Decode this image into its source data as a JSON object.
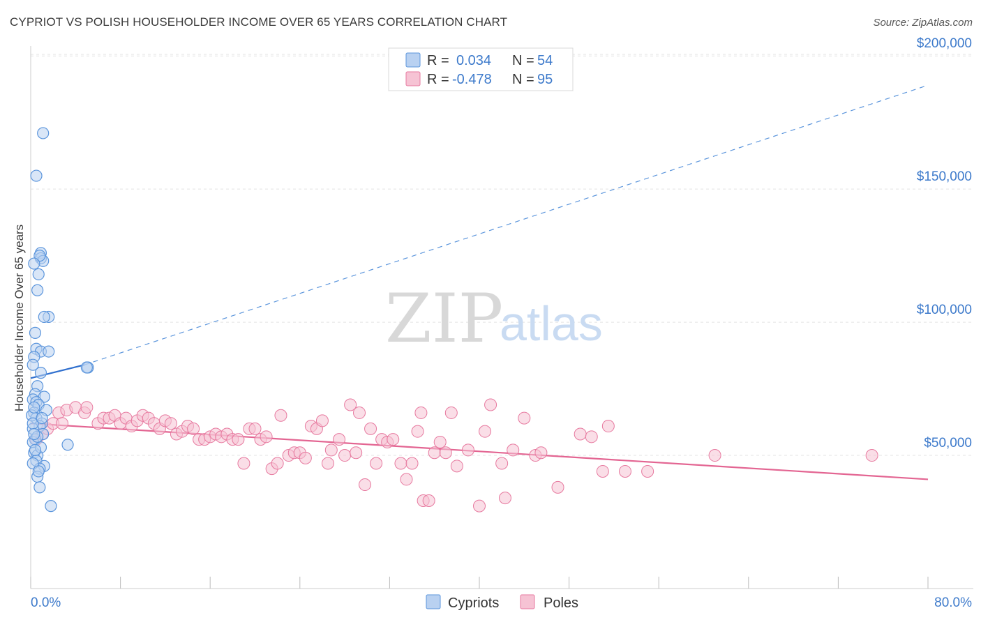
{
  "title": "CYPRIOT VS POLISH HOUSEHOLDER INCOME OVER 65 YEARS CORRELATION CHART",
  "source": "Source: ZipAtlas.com",
  "watermark": {
    "zip": "ZIP",
    "atlas": "atlas"
  },
  "colors": {
    "cypriot": "#5b95dc",
    "cypriot_fill": "#b9d1f1",
    "cypriot_line": "#2f6fce",
    "poles": "#e7799f",
    "poles_fill": "#f6c3d4",
    "poles_line": "#e36592",
    "axis_text": "#3d7acb",
    "grid": "#e3e3e3"
  },
  "legend": {
    "rows": [
      {
        "r_label": "R =",
        "r_value": "0.034",
        "n_label": "N =",
        "n_value": "54"
      },
      {
        "r_label": "R =",
        "r_value": "-0.478",
        "n_label": "N =",
        "n_value": "95"
      }
    ]
  },
  "chart_data": {
    "type": "scatter",
    "xlabel": "",
    "ylabel": "Householder Income Over 65 years",
    "xlim": [
      0,
      80
    ],
    "ylim": [
      0,
      210000
    ],
    "x_tick_labels": [
      "0.0%",
      "80.0%"
    ],
    "y_ticks": [
      50000,
      100000,
      150000,
      200000
    ],
    "y_tick_labels": [
      "$50,000",
      "$100,000",
      "$150,000",
      "$200,000"
    ],
    "grid": "horizontal dashed",
    "legend_position": "top-center",
    "bottom_legend": [
      "Cypriots",
      "Poles"
    ],
    "series": [
      {
        "name": "Cypriots",
        "r": 0.034,
        "n": 54,
        "trend": {
          "x": [
            0,
            4.8
          ],
          "y": [
            79000,
            84000
          ],
          "extension": {
            "x": [
              4.8,
              80
            ],
            "y": [
              84000,
              189000
            ]
          }
        },
        "points": [
          [
            1.1,
            171000
          ],
          [
            0.5,
            155000
          ],
          [
            0.9,
            126000
          ],
          [
            0.9,
            124000
          ],
          [
            1.1,
            123000
          ],
          [
            0.8,
            125000
          ],
          [
            0.3,
            122000
          ],
          [
            0.7,
            118000
          ],
          [
            0.6,
            112000
          ],
          [
            1.6,
            102000
          ],
          [
            1.2,
            102000
          ],
          [
            0.4,
            96000
          ],
          [
            0.5,
            90000
          ],
          [
            0.9,
            89000
          ],
          [
            1.6,
            89000
          ],
          [
            0.3,
            87000
          ],
          [
            0.2,
            84000
          ],
          [
            0.9,
            81000
          ],
          [
            0.6,
            76000
          ],
          [
            0.4,
            73000
          ],
          [
            1.2,
            72000
          ],
          [
            0.2,
            71000
          ],
          [
            0.5,
            70000
          ],
          [
            0.7,
            69000
          ],
          [
            0.3,
            66000
          ],
          [
            0.5,
            64000
          ],
          [
            1.0,
            62000
          ],
          [
            0.8,
            61000
          ],
          [
            0.2,
            60000
          ],
          [
            1.1,
            58000
          ],
          [
            0.4,
            56000
          ],
          [
            0.2,
            55000
          ],
          [
            3.3,
            54000
          ],
          [
            0.3,
            51000
          ],
          [
            0.6,
            50000
          ],
          [
            0.5,
            48000
          ],
          [
            1.2,
            46000
          ],
          [
            0.8,
            45000
          ],
          [
            0.6,
            42000
          ],
          [
            0.8,
            38000
          ],
          [
            1.8,
            31000
          ],
          [
            5.1,
            83000
          ],
          [
            5.0,
            83000
          ],
          [
            0.1,
            65000
          ],
          [
            0.3,
            68000
          ],
          [
            0.6,
            57000
          ],
          [
            0.9,
            53000
          ],
          [
            0.4,
            52000
          ],
          [
            0.2,
            47000
          ],
          [
            0.7,
            44000
          ],
          [
            1.4,
            67000
          ],
          [
            0.2,
            62000
          ],
          [
            0.3,
            58000
          ],
          [
            1.0,
            64000
          ]
        ]
      },
      {
        "name": "Poles",
        "r": -0.478,
        "n": 95,
        "trend": {
          "x": [
            0,
            80
          ],
          "y": [
            62000,
            41000
          ]
        },
        "points": [
          [
            0.5,
            56000
          ],
          [
            1.0,
            58000
          ],
          [
            1.5,
            60000
          ],
          [
            2.0,
            62000
          ],
          [
            2.5,
            66000
          ],
          [
            3.2,
            67000
          ],
          [
            4.0,
            68000
          ],
          [
            4.8,
            66000
          ],
          [
            5.0,
            68000
          ],
          [
            6.0,
            62000
          ],
          [
            6.5,
            64000
          ],
          [
            7.0,
            64000
          ],
          [
            7.5,
            65000
          ],
          [
            8.0,
            62000
          ],
          [
            8.5,
            64000
          ],
          [
            9.0,
            61000
          ],
          [
            9.5,
            63000
          ],
          [
            10.0,
            65000
          ],
          [
            10.5,
            64000
          ],
          [
            11.0,
            62000
          ],
          [
            11.5,
            60000
          ],
          [
            12.0,
            63000
          ],
          [
            12.5,
            62000
          ],
          [
            13.0,
            58000
          ],
          [
            13.5,
            59000
          ],
          [
            14.0,
            61000
          ],
          [
            14.5,
            60000
          ],
          [
            15.0,
            56000
          ],
          [
            15.5,
            56000
          ],
          [
            16.0,
            57000
          ],
          [
            16.5,
            58000
          ],
          [
            17.0,
            57000
          ],
          [
            17.5,
            58000
          ],
          [
            18.0,
            56000
          ],
          [
            18.5,
            56000
          ],
          [
            19.0,
            47000
          ],
          [
            19.5,
            60000
          ],
          [
            20.0,
            60000
          ],
          [
            20.5,
            56000
          ],
          [
            21.0,
            57000
          ],
          [
            21.5,
            45000
          ],
          [
            22.0,
            47000
          ],
          [
            22.3,
            65000
          ],
          [
            23.0,
            50000
          ],
          [
            23.5,
            51000
          ],
          [
            24.0,
            51000
          ],
          [
            24.5,
            49000
          ],
          [
            25.0,
            61000
          ],
          [
            25.5,
            60000
          ],
          [
            26.0,
            63000
          ],
          [
            26.5,
            47000
          ],
          [
            26.8,
            52000
          ],
          [
            27.5,
            56000
          ],
          [
            28.0,
            50000
          ],
          [
            28.5,
            69000
          ],
          [
            29.0,
            51000
          ],
          [
            29.3,
            66000
          ],
          [
            29.8,
            39000
          ],
          [
            30.3,
            60000
          ],
          [
            30.8,
            47000
          ],
          [
            31.3,
            56000
          ],
          [
            31.8,
            55000
          ],
          [
            32.3,
            56000
          ],
          [
            33.0,
            47000
          ],
          [
            33.5,
            41000
          ],
          [
            34.0,
            47000
          ],
          [
            34.5,
            59000
          ],
          [
            34.8,
            66000
          ],
          [
            35.0,
            33000
          ],
          [
            35.5,
            33000
          ],
          [
            36.0,
            51000
          ],
          [
            36.5,
            55000
          ],
          [
            37.0,
            51000
          ],
          [
            37.5,
            66000
          ],
          [
            38.0,
            46000
          ],
          [
            39.0,
            52000
          ],
          [
            40.0,
            31000
          ],
          [
            40.5,
            59000
          ],
          [
            41.0,
            69000
          ],
          [
            42.0,
            47000
          ],
          [
            42.3,
            34000
          ],
          [
            43.0,
            52000
          ],
          [
            44.0,
            64000
          ],
          [
            45.0,
            50000
          ],
          [
            45.5,
            51000
          ],
          [
            47.0,
            38000
          ],
          [
            49.0,
            58000
          ],
          [
            50.0,
            57000
          ],
          [
            51.0,
            44000
          ],
          [
            51.5,
            61000
          ],
          [
            53.0,
            44000
          ],
          [
            55.0,
            44000
          ],
          [
            61.0,
            50000
          ],
          [
            75.0,
            50000
          ],
          [
            2.8,
            62000
          ]
        ]
      }
    ]
  }
}
